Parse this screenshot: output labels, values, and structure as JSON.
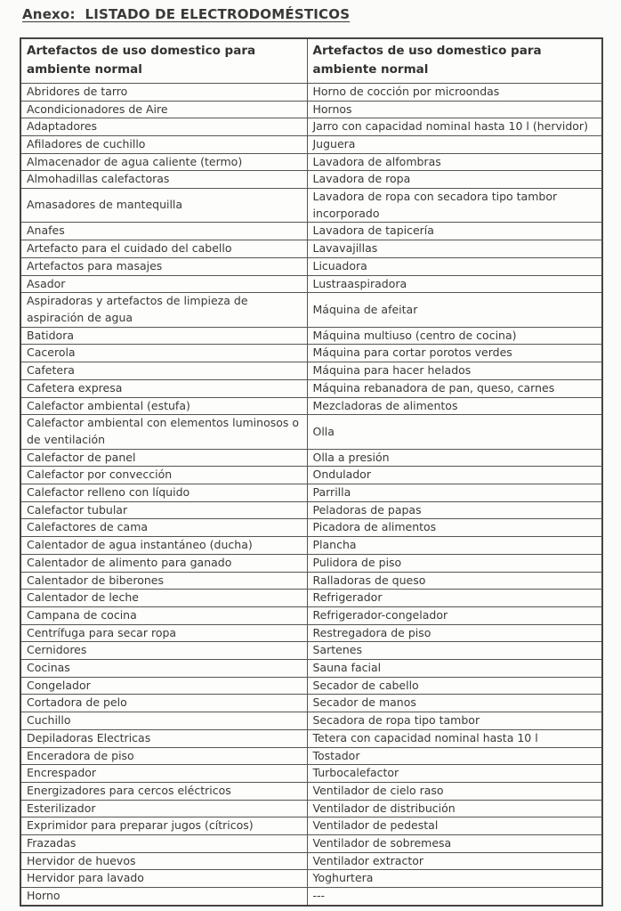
{
  "title": "Anexo:  LISTADO DE ELECTRODOMÉSTICOS",
  "table": {
    "headers": [
      "Artefactos de uso domestico para ambiente normal",
      "Artefactos de uso domestico para ambiente normal"
    ],
    "rows": [
      [
        "Abridores de tarro",
        "Horno de cocción por microondas"
      ],
      [
        "Acondicionadores de Aire",
        "Hornos"
      ],
      [
        "Adaptadores",
        "Jarro con capacidad nominal hasta 10 l (hervidor)"
      ],
      [
        "Afiladores de cuchillo",
        "Juguera"
      ],
      [
        "Almacenador de agua caliente (termo)",
        "Lavadora de alfombras"
      ],
      [
        "Almohadillas calefactoras",
        "Lavadora de ropa"
      ],
      [
        "Amasadores de mantequilla",
        "Lavadora de ropa con secadora tipo tambor incorporado"
      ],
      [
        "Anafes",
        "Lavadora de tapicería"
      ],
      [
        "Artefacto para el cuidado del cabello",
        "Lavavajillas"
      ],
      [
        "Artefactos para masajes",
        "Licuadora"
      ],
      [
        "Asador",
        "Lustraaspiradora"
      ],
      [
        "Aspiradoras y artefactos de limpieza de aspiración de agua",
        "Máquina de afeitar"
      ],
      [
        "Batidora",
        "Máquina multiuso (centro de cocina)"
      ],
      [
        "Cacerola",
        "Máquina para cortar porotos verdes"
      ],
      [
        "Cafetera",
        "Máquina para hacer helados"
      ],
      [
        "Cafetera expresa",
        "Máquina rebanadora de pan, queso, carnes"
      ],
      [
        "Calefactor ambiental (estufa)",
        "Mezcladoras de alimentos"
      ],
      [
        "Calefactor ambiental con elementos luminosos o de ventilación",
        "Olla"
      ],
      [
        "Calefactor de panel",
        "Olla a presión"
      ],
      [
        "Calefactor por convección",
        "Ondulador"
      ],
      [
        "Calefactor relleno con líquido",
        "Parrilla"
      ],
      [
        "Calefactor tubular",
        "Peladoras de papas"
      ],
      [
        "Calefactores de cama",
        "Picadora de alimentos"
      ],
      [
        "Calentador de agua instantáneo (ducha)",
        "Plancha"
      ],
      [
        "Calentador de alimento para ganado",
        "Pulidora de piso"
      ],
      [
        "Calentador de biberones",
        "Ralladoras de queso"
      ],
      [
        "Calentador de leche",
        "Refrigerador"
      ],
      [
        "Campana de cocina",
        "Refrigerador-congelador"
      ],
      [
        "Centrífuga para secar ropa",
        "Restregadora de piso"
      ],
      [
        "Cernidores",
        "Sartenes"
      ],
      [
        "Cocinas",
        "Sauna facial"
      ],
      [
        "Congelador",
        "Secador de cabello"
      ],
      [
        "Cortadora de pelo",
        "Secador de manos"
      ],
      [
        "Cuchillo",
        "Secadora de ropa tipo tambor"
      ],
      [
        "Depiladoras Electricas",
        "Tetera con capacidad nominal hasta 10 l"
      ],
      [
        "Enceradora de piso",
        "Tostador"
      ],
      [
        "Encrespador",
        "Turbocalefactor"
      ],
      [
        "Energizadores para cercos eléctricos",
        "Ventilador de cielo raso"
      ],
      [
        "Esterilizador",
        "Ventilador de distribución"
      ],
      [
        "Exprimidor para preparar jugos (cítricos)",
        "Ventilador de pedestal"
      ],
      [
        "Frazadas",
        "Ventilador de sobremesa"
      ],
      [
        "Hervidor de huevos",
        "Ventilador extractor"
      ],
      [
        "Hervidor para lavado",
        "Yoghurtera"
      ],
      [
        "Horno",
        "---"
      ]
    ]
  }
}
